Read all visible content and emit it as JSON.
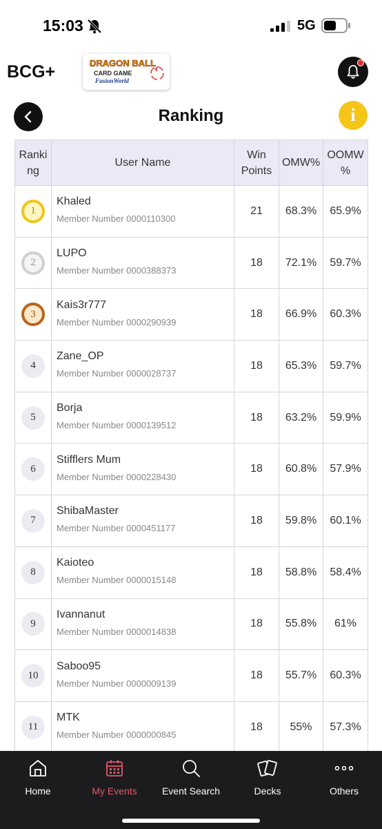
{
  "status_bar": {
    "time": "15:03",
    "network": "5G",
    "icons": [
      "bell-mute-icon",
      "signal-icon",
      "battery-icon"
    ]
  },
  "header": {
    "app_logo": "BCG+",
    "game_logo_line1": "DRAGON BALL",
    "game_logo_line2": "CARD GAME",
    "game_logo_line3": "FusionWorld",
    "notification_icon": "bell-icon"
  },
  "page": {
    "title": "Ranking",
    "back_icon": "chevron-left-icon",
    "info_label": "i"
  },
  "table": {
    "columns": {
      "rank": "Ranki ng",
      "user": "User Name",
      "win_points": "Win Points",
      "omw": "OMW%",
      "oomw": "OOMW %"
    },
    "rows": [
      {
        "rank": "1",
        "name": "Khaled",
        "member": "Member Number 0000110300",
        "win_points": "21",
        "omw": "68.3%",
        "oomw": "65.9%"
      },
      {
        "rank": "2",
        "name": "LUPO",
        "member": "Member Number 0000388373",
        "win_points": "18",
        "omw": "72.1%",
        "oomw": "59.7%"
      },
      {
        "rank": "3",
        "name": "Kais3r777",
        "member": "Member Number 0000290939",
        "win_points": "18",
        "omw": "66.9%",
        "oomw": "60.3%"
      },
      {
        "rank": "4",
        "name": "Zane_OP",
        "member": "Member Number 0000028737",
        "win_points": "18",
        "omw": "65.3%",
        "oomw": "59.7%"
      },
      {
        "rank": "5",
        "name": "Borja",
        "member": "Member Number 0000139512",
        "win_points": "18",
        "omw": "63.2%",
        "oomw": "59.9%"
      },
      {
        "rank": "6",
        "name": "Stifflers Mum",
        "member": "Member Number 0000228430",
        "win_points": "18",
        "omw": "60.8%",
        "oomw": "57.9%"
      },
      {
        "rank": "7",
        "name": "ShibaMaster",
        "member": "Member Number 0000451177",
        "win_points": "18",
        "omw": "59.8%",
        "oomw": "60.1%"
      },
      {
        "rank": "8",
        "name": "Kaioteo",
        "member": "Member Number 0000015148",
        "win_points": "18",
        "omw": "58.8%",
        "oomw": "58.4%"
      },
      {
        "rank": "9",
        "name": "Ivannanut",
        "member": "Member Number 0000014838",
        "win_points": "18",
        "omw": "55.8%",
        "oomw": "61%"
      },
      {
        "rank": "10",
        "name": "Saboo95",
        "member": "Member Number 0000009139",
        "win_points": "18",
        "omw": "55.7%",
        "oomw": "60.3%"
      },
      {
        "rank": "11",
        "name": "MTK",
        "member": "Member Number 0000000845",
        "win_points": "18",
        "omw": "55%",
        "oomw": "57.3%"
      }
    ]
  },
  "nav": {
    "items": [
      {
        "label": "Home",
        "icon": "home-icon",
        "active": false
      },
      {
        "label": "My Events",
        "icon": "calendar-icon",
        "active": true
      },
      {
        "label": "Event Search",
        "icon": "search-icon",
        "active": false
      },
      {
        "label": "Decks",
        "icon": "cards-icon",
        "active": false
      },
      {
        "label": "Others",
        "icon": "more-dots-icon",
        "active": false
      }
    ]
  },
  "colors": {
    "header_bg": "#ebe9f6",
    "accent_yellow": "#f5c518",
    "active_nav": "#e4566a",
    "nav_bg": "#1c1c1e",
    "gold": "#f0c419",
    "silver": "#cfcfcf",
    "bronze": "#b8651c"
  }
}
